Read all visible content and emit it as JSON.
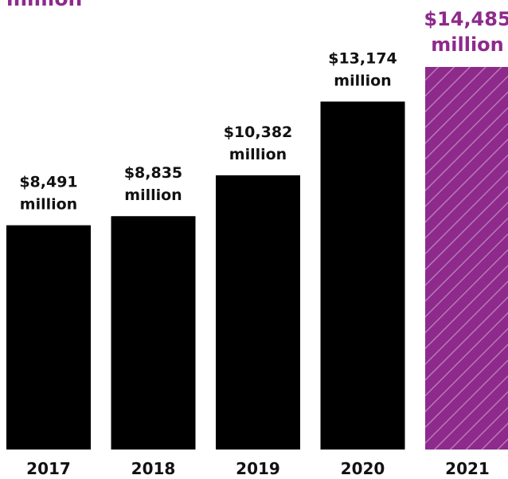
{
  "header": {
    "partial_text": "million"
  },
  "colors": {
    "bar": "#000000",
    "highlight": "#8e2a8c",
    "highlight_stripe": "#b77ab6",
    "label": "#111111"
  },
  "chart_data": {
    "type": "bar",
    "categories": [
      "2017",
      "2018",
      "2019",
      "2020",
      "2021"
    ],
    "values": [
      8491,
      8835,
      10382,
      13174,
      14485
    ],
    "value_labels": [
      [
        "$8,491",
        "million"
      ],
      [
        "$8,835",
        "million"
      ],
      [
        "$10,382",
        "million"
      ],
      [
        "$13,174",
        "million"
      ],
      [
        "$14,485",
        "million"
      ]
    ],
    "highlight_category": "2021",
    "unit": "million",
    "ylim": [
      0,
      14485
    ],
    "grid": false,
    "legend": "none"
  }
}
